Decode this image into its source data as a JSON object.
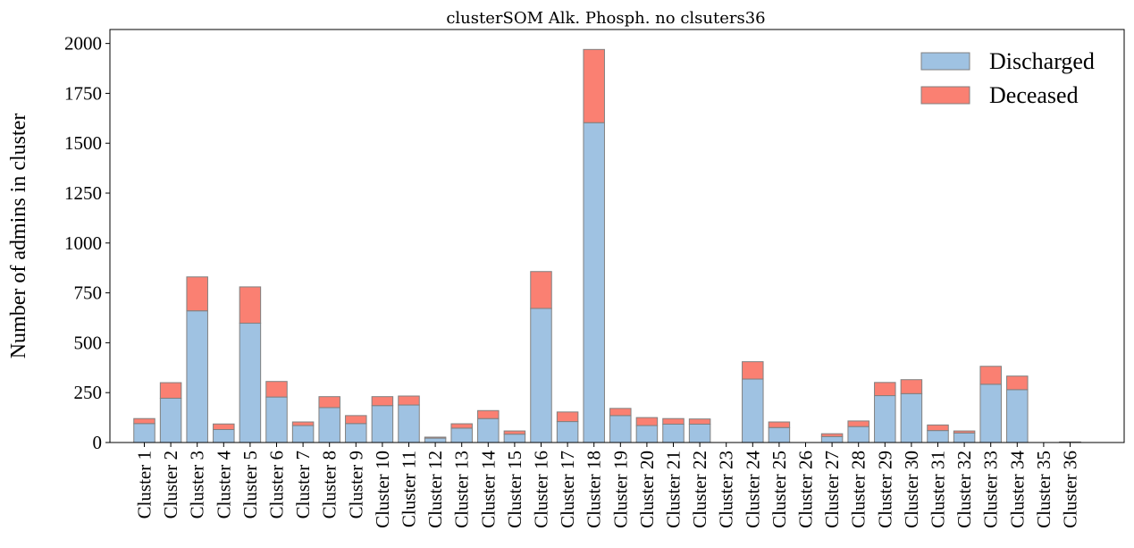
{
  "chart_data": {
    "type": "bar",
    "stacked": true,
    "title": "clusterSOM Alk. Phosph. no clsuters36",
    "xlabel": "",
    "ylabel": "Number of admins in cluster",
    "ylim": [
      0,
      2070
    ],
    "yticks": [
      0,
      250,
      500,
      750,
      1000,
      1250,
      1500,
      1750,
      2000
    ],
    "grid": false,
    "legend": "top-right",
    "categories": [
      "Cluster 1",
      "Cluster 2",
      "Cluster 3",
      "Cluster 4",
      "Cluster 5",
      "Cluster 6",
      "Cluster 7",
      "Cluster 8",
      "Cluster 9",
      "Cluster 10",
      "Cluster 11",
      "Cluster 12",
      "Cluster 13",
      "Cluster 14",
      "Cluster 15",
      "Cluster 16",
      "Cluster 17",
      "Cluster 18",
      "Cluster 19",
      "Cluster 20",
      "Cluster 21",
      "Cluster 22",
      "Cluster 23",
      "Cluster 24",
      "Cluster 25",
      "Cluster 26",
      "Cluster 27",
      "Cluster 28",
      "Cluster 29",
      "Cluster 30",
      "Cluster 31",
      "Cluster 32",
      "Cluster 33",
      "Cluster 34",
      "Cluster 35",
      "Cluster 36"
    ],
    "series": [
      {
        "name": "Discharged",
        "color": "#9fc2e2",
        "values": [
          95,
          222,
          660,
          65,
          598,
          228,
          85,
          175,
          95,
          185,
          188,
          22,
          72,
          120,
          42,
          672,
          105,
          1603,
          135,
          85,
          92,
          92,
          0,
          318,
          75,
          0,
          30,
          80,
          235,
          245,
          60,
          48,
          292,
          265,
          0,
          2
        ]
      },
      {
        "name": "Deceased",
        "color": "#fa8072",
        "values": [
          25,
          78,
          170,
          28,
          182,
          78,
          18,
          55,
          40,
          45,
          45,
          5,
          22,
          40,
          16,
          185,
          48,
          367,
          36,
          40,
          28,
          26,
          0,
          87,
          28,
          0,
          14,
          28,
          66,
          70,
          28,
          10,
          90,
          68,
          0,
          1
        ]
      }
    ]
  }
}
